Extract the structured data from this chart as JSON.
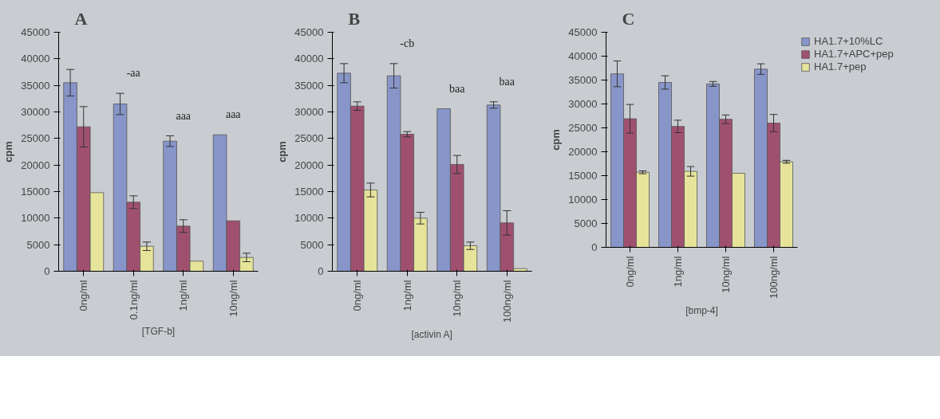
{
  "chart_data": [
    {
      "type": "bar",
      "title": "A",
      "xlabel": "[TGF-b]",
      "ylabel": "cpm",
      "categories": [
        "0ng/ml",
        "0.1ng/ml",
        "1ng/ml",
        "10ng/ml"
      ],
      "ylim": [
        0,
        45000
      ],
      "yticks": [
        0,
        5000,
        10000,
        15000,
        20000,
        25000,
        30000,
        35000,
        40000,
        45000
      ],
      "grid": false,
      "legend": false,
      "series": [
        {
          "color": "#8795c9",
          "values": [
            35500,
            31500,
            24500,
            25700
          ],
          "errors": [
            2500,
            2000,
            1000,
            null
          ]
        },
        {
          "color": "#a0506f",
          "values": [
            27200,
            13000,
            8500,
            9500
          ],
          "errors": [
            3800,
            1200,
            1200,
            null
          ]
        },
        {
          "color": "#e6e49a",
          "values": [
            14800,
            4700,
            1900,
            2600
          ],
          "errors": [
            null,
            800,
            null,
            800
          ]
        }
      ],
      "annotations": [
        "-aa",
        "aaa",
        "aaa"
      ]
    },
    {
      "type": "bar",
      "title": "B",
      "xlabel": "[activin A]",
      "ylabel": "cpm",
      "categories": [
        "0ng/ml",
        "1ng/ml",
        "10ng/ml",
        "100ng/ml"
      ],
      "ylim": [
        0,
        45000
      ],
      "yticks": [
        0,
        5000,
        10000,
        15000,
        20000,
        25000,
        30000,
        35000,
        40000,
        45000
      ],
      "grid": false,
      "legend": false,
      "series": [
        {
          "color": "#8795c9",
          "values": [
            37300,
            36800,
            30600,
            31300
          ],
          "errors": [
            1800,
            2300,
            null,
            600
          ]
        },
        {
          "color": "#a0506f",
          "values": [
            31100,
            25800,
            20100,
            9100
          ],
          "errors": [
            800,
            500,
            1700,
            2300
          ]
        },
        {
          "color": "#e6e49a",
          "values": [
            15300,
            10000,
            4800,
            500
          ],
          "errors": [
            1300,
            1100,
            700,
            null
          ]
        }
      ],
      "annotations": [
        "-cb",
        "baa",
        "baa"
      ]
    },
    {
      "type": "bar",
      "title": "C",
      "xlabel": "[bmp-4]",
      "ylabel": "cpm",
      "categories": [
        "0ng/ml",
        "1ng/ml",
        "10ng/ml",
        "100ng/ml"
      ],
      "ylim": [
        0,
        45000
      ],
      "yticks": [
        0,
        5000,
        10000,
        15000,
        20000,
        25000,
        30000,
        35000,
        40000,
        45000
      ],
      "grid": false,
      "legend": "top right",
      "series": [
        {
          "name": "HA1.7+10%LC",
          "color": "#8795c9",
          "values": [
            36300,
            34500,
            34200,
            37300
          ],
          "errors": [
            2700,
            1400,
            500,
            1100
          ]
        },
        {
          "name": "HA1.7+APC+pep",
          "color": "#a0506f",
          "values": [
            26900,
            25300,
            26800,
            26000
          ],
          "errors": [
            3000,
            1300,
            900,
            1800
          ]
        },
        {
          "name": "HA1.7+pep",
          "color": "#e6e49a",
          "values": [
            15700,
            15900,
            15500,
            17900
          ],
          "errors": [
            300,
            1000,
            null,
            300
          ]
        }
      ]
    }
  ]
}
